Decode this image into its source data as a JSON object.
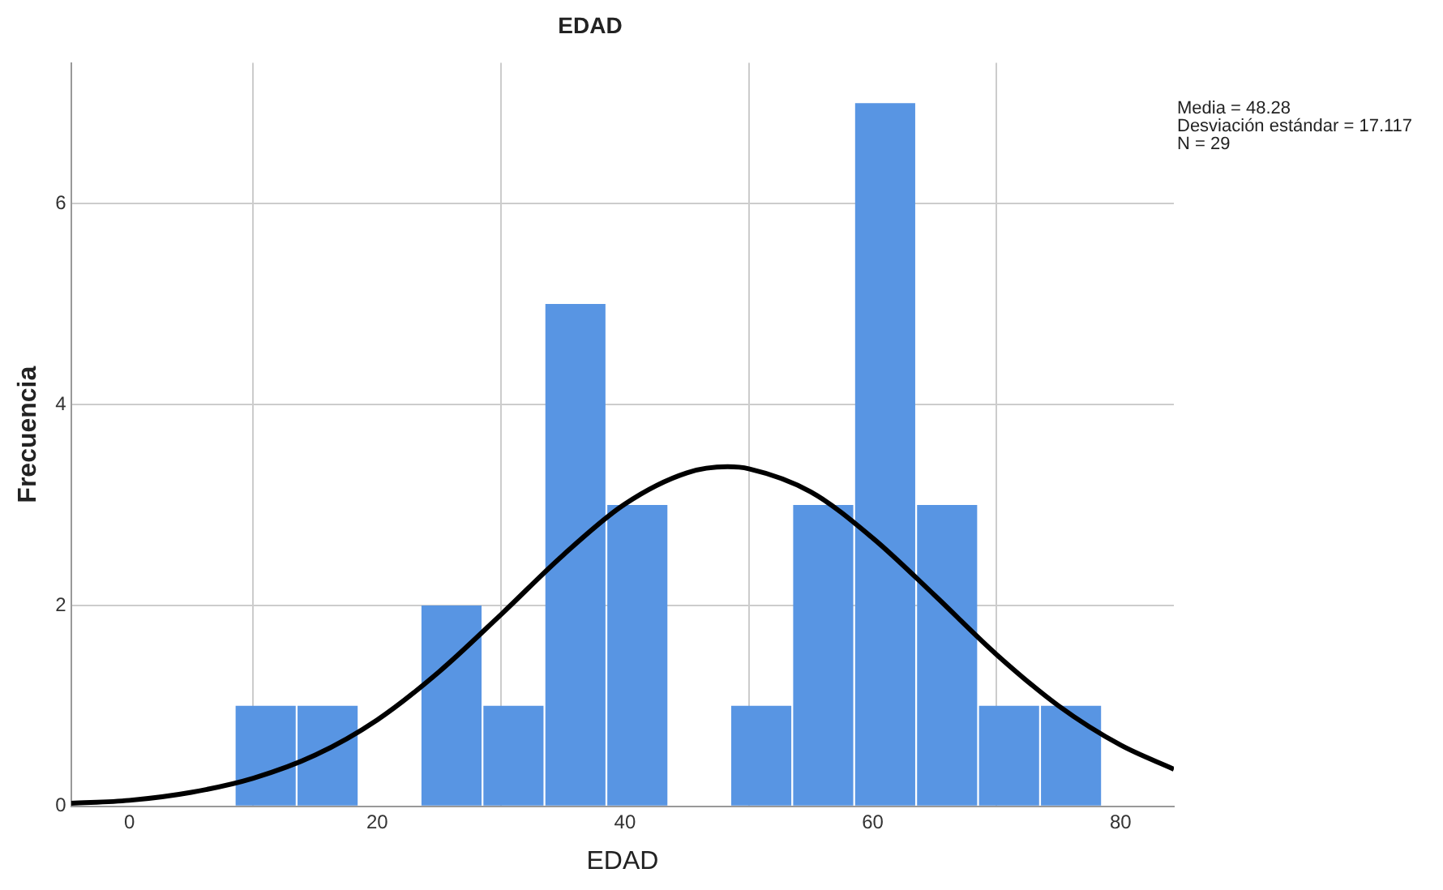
{
  "chart_data": {
    "type": "histogram",
    "title": "EDAD",
    "xlabel": "EDAD",
    "ylabel": "Frecuencia",
    "bins": [
      8.5,
      13.5,
      18.5,
      23.5,
      28.5,
      33.5,
      38.5,
      43.5,
      48.5,
      53.5,
      58.5,
      63.5,
      68.5,
      73.5,
      78.5
    ],
    "values": [
      1,
      1,
      0,
      2,
      1,
      5,
      3,
      0,
      1,
      3,
      7,
      3,
      1,
      1
    ],
    "color": "#5895e3",
    "series": [
      {
        "type": "line",
        "color": "#000000",
        "x": [
          -4.7,
          0,
          5,
          10,
          15,
          20,
          25,
          30,
          35,
          40,
          45,
          48.28,
          50,
          55,
          60,
          65,
          70,
          75,
          80,
          84.3
        ],
        "values": [
          0.03,
          0.06,
          0.14,
          0.28,
          0.51,
          0.86,
          1.34,
          1.91,
          2.5,
          3.01,
          3.32,
          3.38,
          3.36,
          3.13,
          2.67,
          2.1,
          1.51,
          1.0,
          0.61,
          0.37
        ]
      }
    ],
    "xlim": [
      -4.7,
      84.3
    ],
    "xticks": [
      0,
      20,
      40,
      60,
      80
    ],
    "ylim": [
      0,
      7.4
    ],
    "yticks": [
      0,
      2,
      4,
      6
    ],
    "grid": true,
    "legend": false,
    "marker": "none",
    "annotations": [
      "Media = 48.28\nDesviación estándar = 17.117\nN = 29"
    ]
  }
}
